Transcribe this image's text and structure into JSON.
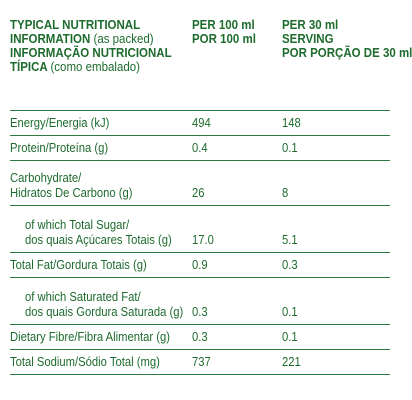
{
  "header": {
    "col1_en_line1": "TYPICAL NUTRITIONAL",
    "col1_en_line2": "INFORMATION",
    "col1_en_note": "(as packed)",
    "col1_pt_line1": "INFORMAÇÃO NUTRICIONAL",
    "col1_pt_line2": "TÍPICA",
    "col1_pt_note": "(como embalado)",
    "col2_line1": "PER 100 ml",
    "col2_line2": "POR 100 ml",
    "col3_line1": "PER 30 ml",
    "col3_line2": "SERVING",
    "col3_line3": "POR PORÇÃO DE 30 ml"
  },
  "rows": [
    {
      "label": [
        "Energy/Energia (kJ)"
      ],
      "per100": "494",
      "serving": "148"
    },
    {
      "label": [
        "Protein/Proteína (g)"
      ],
      "per100": "0.4",
      "serving": "0.1"
    },
    {
      "label": [
        "Carbohydrate/",
        "Hidratos De Carbono (g)"
      ],
      "per100": "26",
      "serving": "8"
    },
    {
      "label": [
        "of which Total Sugar/",
        "dos quais Açúcares Totais (g)"
      ],
      "per100": "17.0",
      "serving": "5.1"
    },
    {
      "label": [
        "Total Fat/Gordura Totais (g)"
      ],
      "per100": "0.9",
      "serving": "0.3"
    },
    {
      "label": [
        "of which Saturated Fat/",
        "dos quais Gordura Saturada (g)"
      ],
      "per100": "0.3",
      "serving": "0.1"
    },
    {
      "label": [
        "Dietary Fibre/Fibra Alimentar (g)"
      ],
      "per100": "0.3",
      "serving": "0.1"
    },
    {
      "label": [
        "Total Sodium/Sódio Total (mg)"
      ],
      "per100": "737",
      "serving": "221"
    }
  ],
  "colors": {
    "text": "#1e6b2e",
    "rule": "#2f7a3e"
  }
}
